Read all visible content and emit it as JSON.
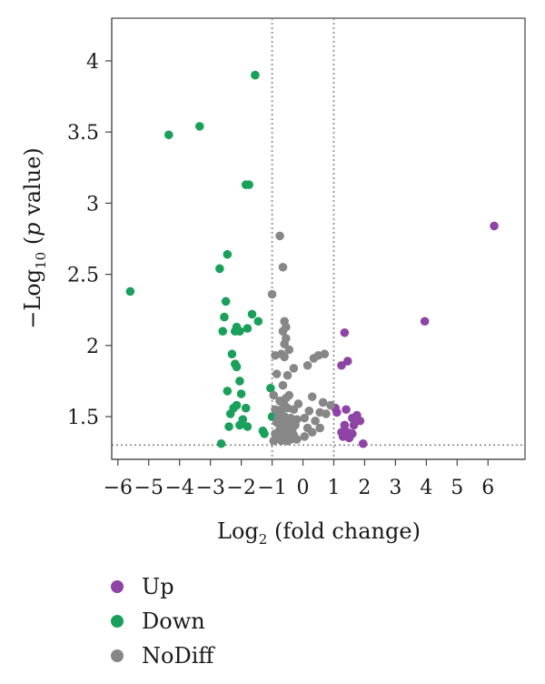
{
  "chart_data": {
    "type": "scatter",
    "title": "",
    "xlabel": {
      "main": "Log",
      "sub": "2",
      "rest": " (fold change)"
    },
    "ylabel": {
      "prefix": "−Log",
      "sub": "10",
      "mid": " (",
      "italic": "p",
      "rest": " value)"
    },
    "xlim": [
      -6.2,
      7.2
    ],
    "ylim": [
      1.2,
      4.3
    ],
    "xticks": [
      -6,
      -5,
      -4,
      -3,
      -2,
      -1,
      0,
      1,
      2,
      3,
      4,
      5,
      6
    ],
    "xtick_labels": [
      "−6",
      "−5",
      "−4",
      "−3",
      "−2",
      "−1",
      "0",
      "1",
      "2",
      "3",
      "4",
      "5",
      "6"
    ],
    "yticks": [
      1.5,
      2,
      2.5,
      3,
      3.5,
      4
    ],
    "ytick_labels": [
      "1.5",
      "2",
      "2.5",
      "3",
      "3.5",
      "4"
    ],
    "thresholds": {
      "x": [
        -1,
        1
      ],
      "y": 1.3
    },
    "legend_position": "bottom-left",
    "colors": {
      "Up": "#8e44a5",
      "Down": "#1aa05a",
      "NoDiff": "#878787",
      "threshold": "#888888"
    },
    "series": [
      {
        "name": "Up",
        "points": [
          [
            6.2,
            2.84
          ],
          [
            3.95,
            2.17
          ],
          [
            1.35,
            2.09
          ],
          [
            1.45,
            1.89
          ],
          [
            1.25,
            1.86
          ],
          [
            1.05,
            1.56
          ],
          [
            1.1,
            1.53
          ],
          [
            1.4,
            1.55
          ],
          [
            1.75,
            1.51
          ],
          [
            1.6,
            1.49
          ],
          [
            1.85,
            1.47
          ],
          [
            1.65,
            1.44
          ],
          [
            1.35,
            1.44
          ],
          [
            1.25,
            1.39
          ],
          [
            1.45,
            1.39
          ],
          [
            1.6,
            1.38
          ],
          [
            1.3,
            1.36
          ],
          [
            1.5,
            1.35
          ],
          [
            1.95,
            1.31
          ]
        ]
      },
      {
        "name": "Down",
        "points": [
          [
            -1.55,
            3.9
          ],
          [
            -3.35,
            3.54
          ],
          [
            -4.35,
            3.48
          ],
          [
            -1.85,
            3.13
          ],
          [
            -1.75,
            3.13
          ],
          [
            -2.45,
            2.64
          ],
          [
            -2.7,
            2.54
          ],
          [
            -5.6,
            2.38
          ],
          [
            -2.5,
            2.31
          ],
          [
            -2.55,
            2.2
          ],
          [
            -1.65,
            2.22
          ],
          [
            -1.45,
            2.17
          ],
          [
            -2.15,
            2.13
          ],
          [
            -2.2,
            2.1
          ],
          [
            -2.05,
            2.1
          ],
          [
            -1.8,
            2.12
          ],
          [
            -2.6,
            2.1
          ],
          [
            -2.3,
            1.94
          ],
          [
            -2.2,
            1.87
          ],
          [
            -2.15,
            1.85
          ],
          [
            -2.05,
            1.75
          ],
          [
            -2.45,
            1.68
          ],
          [
            -2.0,
            1.66
          ],
          [
            -1.05,
            1.7
          ],
          [
            -2.15,
            1.58
          ],
          [
            -2.25,
            1.56
          ],
          [
            -1.85,
            1.56
          ],
          [
            -2.35,
            1.52
          ],
          [
            -1.95,
            1.48
          ],
          [
            -1.0,
            1.5
          ],
          [
            -2.4,
            1.43
          ],
          [
            -2.05,
            1.44
          ],
          [
            -1.8,
            1.43
          ],
          [
            -1.3,
            1.4
          ],
          [
            -1.25,
            1.38
          ],
          [
            -2.65,
            1.31
          ]
        ]
      },
      {
        "name": "NoDiff",
        "points": [
          [
            -0.75,
            2.77
          ],
          [
            -0.65,
            2.55
          ],
          [
            -1.0,
            2.36
          ],
          [
            -0.6,
            2.17
          ],
          [
            -0.55,
            2.13
          ],
          [
            -0.65,
            2.1
          ],
          [
            -0.55,
            2.05
          ],
          [
            -0.6,
            2.01
          ],
          [
            -0.45,
            1.97
          ],
          [
            -0.7,
            1.94
          ],
          [
            -0.6,
            1.92
          ],
          [
            -0.9,
            1.93
          ],
          [
            0.7,
            1.94
          ],
          [
            0.5,
            1.93
          ],
          [
            0.35,
            1.91
          ],
          [
            -0.3,
            1.84
          ],
          [
            0.15,
            1.86
          ],
          [
            -0.85,
            1.8
          ],
          [
            -0.5,
            1.79
          ],
          [
            -0.65,
            1.72
          ],
          [
            -0.95,
            1.65
          ],
          [
            -0.55,
            1.63
          ],
          [
            -0.45,
            1.65
          ],
          [
            -0.75,
            1.61
          ],
          [
            -0.6,
            1.58
          ],
          [
            0.3,
            1.64
          ],
          [
            -0.15,
            1.59
          ],
          [
            0.65,
            1.6
          ],
          [
            0.9,
            1.58
          ],
          [
            -0.9,
            1.55
          ],
          [
            -0.7,
            1.55
          ],
          [
            -0.5,
            1.56
          ],
          [
            -0.3,
            1.55
          ],
          [
            0.2,
            1.54
          ],
          [
            0.55,
            1.53
          ],
          [
            0.75,
            1.52
          ],
          [
            -0.8,
            1.5
          ],
          [
            -0.6,
            1.5
          ],
          [
            -0.4,
            1.49
          ],
          [
            -0.2,
            1.48
          ],
          [
            0.05,
            1.49
          ],
          [
            0.4,
            1.47
          ],
          [
            -0.85,
            1.46
          ],
          [
            -0.65,
            1.45
          ],
          [
            -0.45,
            1.45
          ],
          [
            -0.25,
            1.44
          ],
          [
            0.15,
            1.42
          ],
          [
            0.55,
            1.42
          ],
          [
            -0.75,
            1.41
          ],
          [
            -0.55,
            1.4
          ],
          [
            -0.35,
            1.4
          ],
          [
            -0.9,
            1.38
          ],
          [
            -0.7,
            1.38
          ],
          [
            -0.5,
            1.37
          ],
          [
            -0.3,
            1.37
          ],
          [
            0.3,
            1.39
          ],
          [
            0.05,
            1.36
          ],
          [
            -0.8,
            1.35
          ],
          [
            -0.6,
            1.35
          ],
          [
            -0.4,
            1.34
          ],
          [
            -0.2,
            1.34
          ],
          [
            -0.95,
            1.33
          ],
          [
            -0.7,
            1.33
          ],
          [
            -0.5,
            1.33
          ],
          [
            -0.55,
            1.36
          ]
        ]
      }
    ]
  }
}
